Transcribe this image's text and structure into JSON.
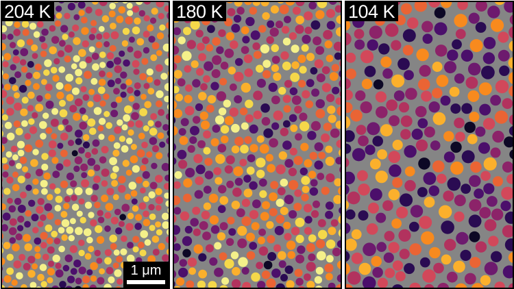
{
  "panels": [
    {
      "label": "204 K",
      "density": "dense",
      "particle_scale": 0.75,
      "bright_bias": 0.55
    },
    {
      "label": "180 K",
      "density": "medium",
      "particle_scale": 0.95,
      "bright_bias": 0.3
    },
    {
      "label": "104 K",
      "density": "sparse",
      "particle_scale": 1.3,
      "bright_bias": 0.12
    }
  ],
  "scalebar": {
    "label": "1 μm"
  },
  "colors": {
    "background": "#858585",
    "palette": [
      "#0d0825",
      "#2a0b52",
      "#4b0f6b",
      "#6d1a6e",
      "#8c2369",
      "#b2325e",
      "#d2485a",
      "#ea6434",
      "#f88a1e",
      "#fbb02c",
      "#f5d84a",
      "#f4f08a"
    ]
  }
}
